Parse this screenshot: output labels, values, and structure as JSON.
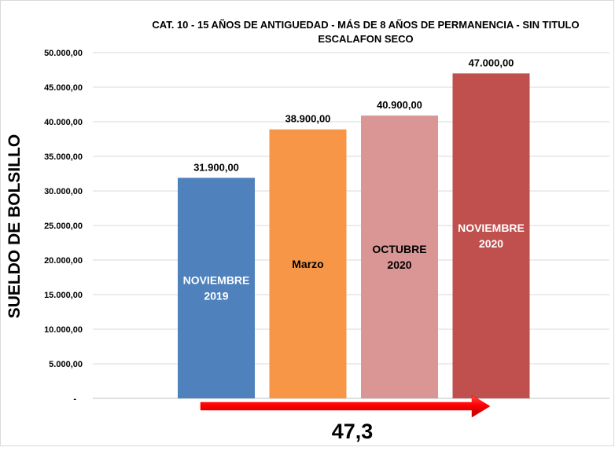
{
  "chart_data": {
    "type": "bar",
    "title_lines": [
      "CAT. 10 - 15 AÑOS DE ANTIGUEDAD - MÁS DE 8 AÑOS DE PERMANENCIA - SIN TITULO",
      "ESCALAFON SECO"
    ],
    "ylabel": "SUELDO DE BOLSILLO",
    "xlabel": "",
    "ylim": [
      0,
      50000
    ],
    "yticks": [
      {
        "value": 0,
        "label": "-"
      },
      {
        "value": 5000,
        "label": "5.000,00"
      },
      {
        "value": 10000,
        "label": "10.000,00"
      },
      {
        "value": 15000,
        "label": "15.000,00"
      },
      {
        "value": 20000,
        "label": "20.000,00"
      },
      {
        "value": 25000,
        "label": "25.000,00"
      },
      {
        "value": 30000,
        "label": "30.000,00"
      },
      {
        "value": 35000,
        "label": "35.000,00"
      },
      {
        "value": 40000,
        "label": "40.000,00"
      },
      {
        "value": 45000,
        "label": "45.000,00"
      },
      {
        "value": 50000,
        "label": "50.000,00"
      }
    ],
    "grid": true,
    "legend": "none",
    "bars": [
      {
        "value": 31900,
        "value_label": "31.900,00",
        "inner_label": [
          "NOVIEMBRE",
          "2019"
        ],
        "color": "#4f81bd",
        "label_color": "#ffffff"
      },
      {
        "value": 38900,
        "value_label": "38.900,00",
        "inner_label": [
          "Marzo"
        ],
        "color": "#f79646",
        "label_color": "#000000"
      },
      {
        "value": 40900,
        "value_label": "40.900,00",
        "inner_label": [
          "OCTUBRE",
          "2020"
        ],
        "color": "#d99694",
        "label_color": "#000000"
      },
      {
        "value": 47000,
        "value_label": "47.000,00",
        "inner_label": [
          "NOVIEMBRE",
          "2020"
        ],
        "color": "#c0504d",
        "label_color": "#ffffff"
      }
    ],
    "annotation": {
      "text": "47,3",
      "arrow_color": "#ff0000"
    }
  }
}
